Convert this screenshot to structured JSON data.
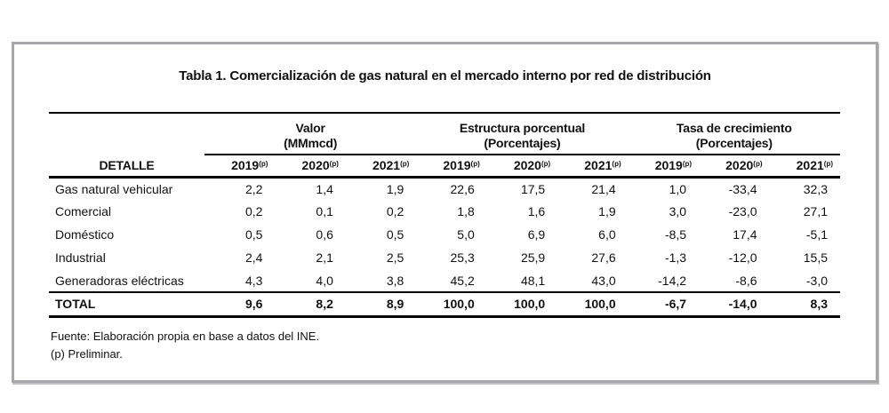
{
  "title": "Tabla 1. Comercialización de gas natural en el mercado interno por red de distribución",
  "table": {
    "detail_header": "DETALLE",
    "year_sup": "(p)",
    "years": [
      "2019",
      "2020",
      "2021"
    ],
    "groups": [
      {
        "title": "Valor",
        "unit": "(MMmcd)"
      },
      {
        "title": "Estructura porcentual",
        "unit": "(Porcentajes)"
      },
      {
        "title": "Tasa de crecimiento",
        "unit": "(Porcentajes)"
      }
    ],
    "rows": [
      {
        "label": "Gas natural vehicular",
        "values": [
          "2,2",
          "1,4",
          "1,9",
          "22,6",
          "17,5",
          "21,4",
          "1,0",
          "-33,4",
          "32,3"
        ]
      },
      {
        "label": "Comercial",
        "values": [
          "0,2",
          "0,1",
          "0,2",
          "1,8",
          "1,6",
          "1,9",
          "3,0",
          "-23,0",
          "27,1"
        ]
      },
      {
        "label": "Doméstico",
        "values": [
          "0,5",
          "0,6",
          "0,5",
          "5,0",
          "6,9",
          "6,0",
          "-8,5",
          "17,4",
          "-5,1"
        ]
      },
      {
        "label": "Industrial",
        "values": [
          "2,4",
          "2,1",
          "2,5",
          "25,3",
          "25,9",
          "27,6",
          "-1,3",
          "-12,0",
          "15,5"
        ]
      },
      {
        "label": "Generadoras eléctricas",
        "values": [
          "4,3",
          "4,0",
          "3,8",
          "45,2",
          "48,1",
          "43,0",
          "-14,2",
          "-8,6",
          "-3,0"
        ]
      }
    ],
    "total": {
      "label": "TOTAL",
      "values": [
        "9,6",
        "8,2",
        "8,9",
        "100,0",
        "100,0",
        "100,0",
        "-6,7",
        "-14,0",
        "8,3"
      ]
    }
  },
  "footnotes": {
    "source": "Fuente: Elaboración propia en base a datos del INE.",
    "preliminary": "(p) Preliminar."
  },
  "colors": {
    "frame_border": "#a7a7ab",
    "rule": "#000000",
    "text": "#111111"
  }
}
